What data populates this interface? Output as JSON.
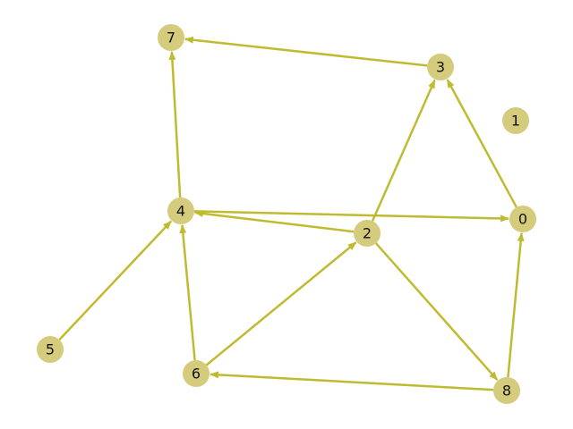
{
  "graph": {
    "directed": true,
    "node_color": "#d4cc7c",
    "edge_color": "#bfbb30",
    "nodes": [
      {
        "id": "0",
        "label": "0"
      },
      {
        "id": "1",
        "label": "1"
      },
      {
        "id": "2",
        "label": "2"
      },
      {
        "id": "3",
        "label": "3"
      },
      {
        "id": "4",
        "label": "4"
      },
      {
        "id": "5",
        "label": "5"
      },
      {
        "id": "6",
        "label": "6"
      },
      {
        "id": "7",
        "label": "7"
      },
      {
        "id": "8",
        "label": "8"
      }
    ],
    "edges": [
      {
        "source": "3",
        "target": "7"
      },
      {
        "source": "0",
        "target": "3"
      },
      {
        "source": "2",
        "target": "3"
      },
      {
        "source": "4",
        "target": "7"
      },
      {
        "source": "4",
        "target": "0"
      },
      {
        "source": "2",
        "target": "4"
      },
      {
        "source": "2",
        "target": "8"
      },
      {
        "source": "5",
        "target": "4"
      },
      {
        "source": "6",
        "target": "4"
      },
      {
        "source": "6",
        "target": "2"
      },
      {
        "source": "8",
        "target": "6"
      },
      {
        "source": "8",
        "target": "0"
      }
    ]
  }
}
